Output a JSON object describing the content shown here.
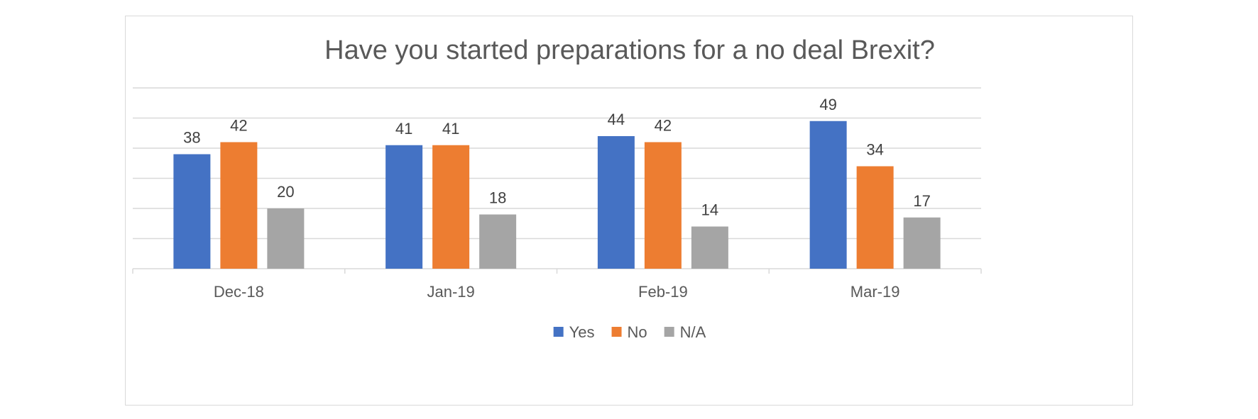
{
  "chart_data": {
    "type": "bar",
    "title": "Have you started preparations for a no deal Brexit?",
    "categories": [
      "Dec-18",
      "Jan-19",
      "Feb-19",
      "Mar-19"
    ],
    "series": [
      {
        "name": "Yes",
        "color": "#4472c4",
        "values": [
          38,
          41,
          44,
          49
        ]
      },
      {
        "name": "No",
        "color": "#ed7d31",
        "values": [
          42,
          41,
          42,
          34
        ]
      },
      {
        "name": "N/A",
        "color": "#a5a5a5",
        "values": [
          20,
          18,
          14,
          17
        ]
      }
    ],
    "ylim": [
      0,
      60
    ],
    "grid": true,
    "y_axis_labels_shown": false,
    "data_labels_shown": true,
    "legend_position": "bottom",
    "xlabel": "",
    "ylabel": ""
  }
}
